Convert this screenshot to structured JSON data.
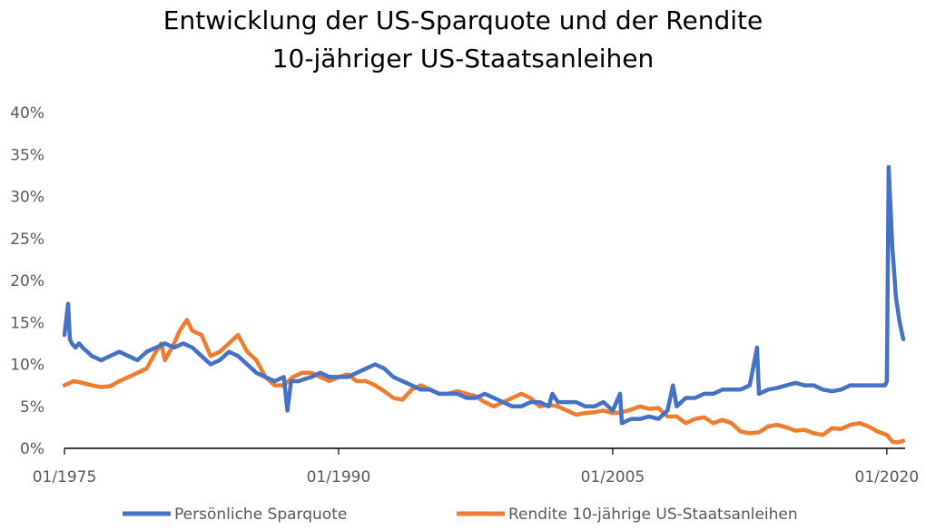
{
  "colors": {
    "sparquote": "#4472C4",
    "rendite": "#ED7D31",
    "axis_text": "#595959"
  },
  "chart_data": {
    "type": "line",
    "title_lines": [
      "Entwicklung der US-Sparquote und der Rendite",
      "10-jähriger US-Staatsanleihen"
    ],
    "xlabel": "",
    "ylabel": "",
    "x_range": [
      1975.0,
      2021.0
    ],
    "ylim": [
      0,
      40
    ],
    "y_ticks": [
      0,
      5,
      10,
      15,
      20,
      25,
      30,
      35,
      40
    ],
    "y_tick_labels": [
      "0%",
      "5%",
      "10%",
      "15%",
      "20%",
      "25%",
      "30%",
      "35%",
      "40%"
    ],
    "x_ticks": [
      1975,
      1990,
      2005,
      2020
    ],
    "x_tick_labels": [
      "01/1975",
      "01/1990",
      "01/2005",
      "01/2020"
    ],
    "grid": false,
    "legend_position": "bottom",
    "series": [
      {
        "name": "Persönliche Sparquote",
        "color": "#4472C4",
        "x": [
          1975.0,
          1975.2,
          1975.3,
          1975.4,
          1975.6,
          1975.8,
          1976.0,
          1976.5,
          1977.0,
          1977.5,
          1978.0,
          1978.5,
          1979.0,
          1979.5,
          1980.0,
          1980.5,
          1981.0,
          1981.5,
          1982.0,
          1982.5,
          1983.0,
          1983.5,
          1984.0,
          1984.5,
          1985.0,
          1985.5,
          1986.0,
          1986.5,
          1987.0,
          1987.2,
          1987.4,
          1987.8,
          1988.5,
          1989.0,
          1989.5,
          1990.0,
          1990.5,
          1991.0,
          1991.5,
          1992.0,
          1992.5,
          1993.0,
          1993.5,
          1994.0,
          1994.5,
          1995.0,
          1995.5,
          1996.0,
          1996.5,
          1997.0,
          1997.5,
          1998.0,
          1998.5,
          1999.0,
          1999.5,
          2000.0,
          2000.5,
          2001.0,
          2001.5,
          2001.7,
          2002.0,
          2002.5,
          2003.0,
          2003.5,
          2004.0,
          2004.5,
          2005.0,
          2005.4,
          2005.5,
          2006.0,
          2006.5,
          2007.0,
          2007.5,
          2008.0,
          2008.3,
          2008.5,
          2009.0,
          2009.5,
          2010.0,
          2010.5,
          2011.0,
          2011.5,
          2012.0,
          2012.5,
          2012.9,
          2013.0,
          2013.5,
          2014.0,
          2014.5,
          2015.0,
          2015.5,
          2016.0,
          2016.5,
          2017.0,
          2017.5,
          2018.0,
          2018.5,
          2019.0,
          2019.5,
          2019.9,
          2020.0,
          2020.1,
          2020.3,
          2020.5,
          2020.7,
          2020.9
        ],
        "values": [
          13.5,
          17.2,
          13.0,
          12.5,
          12.0,
          12.5,
          12.0,
          11.0,
          10.5,
          11.0,
          11.5,
          11.0,
          10.5,
          11.5,
          12.0,
          12.5,
          12.0,
          12.5,
          12.0,
          11.0,
          10.0,
          10.5,
          11.5,
          11.0,
          10.0,
          9.0,
          8.5,
          8.0,
          8.5,
          4.5,
          8.0,
          8.0,
          8.5,
          9.0,
          8.5,
          8.5,
          8.5,
          9.0,
          9.5,
          10.0,
          9.5,
          8.5,
          8.0,
          7.5,
          7.0,
          7.0,
          6.5,
          6.5,
          6.5,
          6.0,
          6.0,
          6.5,
          6.0,
          5.5,
          5.0,
          5.0,
          5.5,
          5.5,
          5.0,
          6.5,
          5.5,
          5.5,
          5.5,
          5.0,
          5.0,
          5.5,
          4.5,
          6.5,
          3.0,
          3.5,
          3.5,
          3.8,
          3.5,
          4.5,
          7.5,
          5.0,
          6.0,
          6.0,
          6.5,
          6.5,
          7.0,
          7.0,
          7.0,
          7.5,
          12.0,
          6.5,
          7.0,
          7.2,
          7.5,
          7.8,
          7.5,
          7.5,
          7.0,
          6.8,
          7.0,
          7.5,
          7.5,
          7.5,
          7.5,
          7.5,
          8.0,
          33.5,
          24.0,
          18.0,
          15.0,
          13.0
        ]
      },
      {
        "name": "Rendite 10-jährige US-Staatsanleihen",
        "color": "#ED7D31",
        "x": [
          1975.0,
          1975.5,
          1976.0,
          1976.5,
          1977.0,
          1977.5,
          1978.0,
          1978.5,
          1979.0,
          1979.5,
          1980.0,
          1980.3,
          1980.5,
          1981.0,
          1981.3,
          1981.7,
          1982.0,
          1982.5,
          1983.0,
          1983.5,
          1984.0,
          1984.5,
          1985.0,
          1985.5,
          1986.0,
          1986.5,
          1987.0,
          1987.5,
          1988.0,
          1988.5,
          1989.0,
          1989.5,
          1990.0,
          1990.5,
          1991.0,
          1991.5,
          1992.0,
          1992.5,
          1993.0,
          1993.5,
          1994.0,
          1994.5,
          1995.0,
          1995.5,
          1996.0,
          1996.5,
          1997.0,
          1997.5,
          1998.0,
          1998.5,
          1999.0,
          1999.5,
          2000.0,
          2000.5,
          2001.0,
          2001.5,
          2002.0,
          2002.5,
          2003.0,
          2003.5,
          2004.0,
          2004.5,
          2005.0,
          2005.5,
          2006.0,
          2006.5,
          2007.0,
          2007.5,
          2008.0,
          2008.5,
          2009.0,
          2009.5,
          2010.0,
          2010.5,
          2011.0,
          2011.5,
          2012.0,
          2012.5,
          2013.0,
          2013.5,
          2014.0,
          2014.5,
          2015.0,
          2015.5,
          2016.0,
          2016.5,
          2017.0,
          2017.5,
          2018.0,
          2018.5,
          2019.0,
          2019.5,
          2020.0,
          2020.3,
          2020.6,
          2020.9
        ],
        "values": [
          7.5,
          8.0,
          7.8,
          7.5,
          7.3,
          7.4,
          8.0,
          8.5,
          9.0,
          9.5,
          11.5,
          12.5,
          10.5,
          12.5,
          14.0,
          15.3,
          14.0,
          13.5,
          11.0,
          11.5,
          12.5,
          13.5,
          11.5,
          10.5,
          8.5,
          7.5,
          7.5,
          8.5,
          9.0,
          9.0,
          8.5,
          8.0,
          8.5,
          8.8,
          8.0,
          8.0,
          7.5,
          6.8,
          6.0,
          5.8,
          7.0,
          7.5,
          7.0,
          6.5,
          6.5,
          6.8,
          6.5,
          6.2,
          5.5,
          5.0,
          5.5,
          6.0,
          6.5,
          6.0,
          5.0,
          5.2,
          5.0,
          4.5,
          4.0,
          4.2,
          4.3,
          4.5,
          4.2,
          4.3,
          4.6,
          5.0,
          4.7,
          4.8,
          3.8,
          3.8,
          3.0,
          3.5,
          3.7,
          3.0,
          3.4,
          3.0,
          2.0,
          1.8,
          1.9,
          2.6,
          2.8,
          2.5,
          2.1,
          2.2,
          1.8,
          1.6,
          2.4,
          2.3,
          2.8,
          3.0,
          2.6,
          2.0,
          1.6,
          0.8,
          0.7,
          0.9
        ]
      }
    ]
  }
}
